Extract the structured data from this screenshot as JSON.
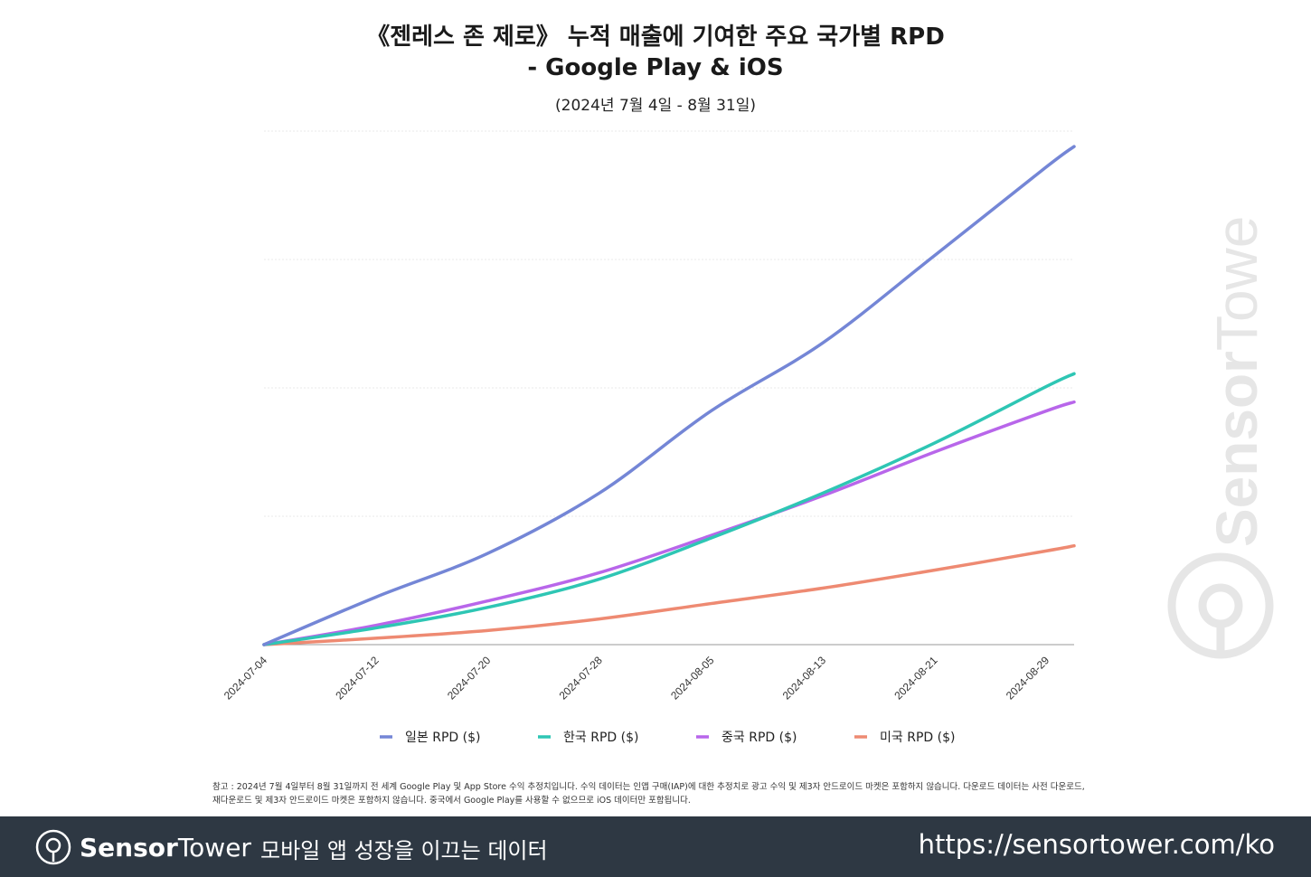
{
  "header": {
    "title_line1": "《젠레스 존 제로》 누적 매출에 기여한 주요 국가별 RPD",
    "title_line2": "- Google Play & iOS",
    "subtitle": "(2024년 7월 4일 - 8월 31일)"
  },
  "chart_data": {
    "type": "line",
    "title": "《젠레스 존 제로》 누적 매출에 기여한 주요 국가별 RPD - Google Play & iOS",
    "subtitle": "(2024년 7월 4일 - 8월 31일)",
    "xlabel": "",
    "ylabel": "",
    "x_ticks": [
      "2024-07-04",
      "2024-07-12",
      "2024-07-20",
      "2024-07-28",
      "2024-08-05",
      "2024-08-13",
      "2024-08-21",
      "2024-08-29"
    ],
    "x": [
      "2024-07-04",
      "2024-07-12",
      "2024-07-20",
      "2024-07-28",
      "2024-08-05",
      "2024-08-13",
      "2024-08-21",
      "2024-08-29",
      "2024-08-31"
    ],
    "xlim": [
      "2024-07-04",
      "2024-08-31"
    ],
    "ylim": [
      0,
      4
    ],
    "y_unit_note_hidden": true,
    "grid": true,
    "y_tick_labels_shown": false,
    "legend_placement": "bottom",
    "series": [
      {
        "name": "일본 RPD ($)",
        "color": "#7486d6",
        "values": [
          0,
          0.37,
          0.71,
          1.18,
          1.82,
          2.35,
          3.03,
          3.72,
          3.88
        ]
      },
      {
        "name": "한국 RPD ($)",
        "color": "#2ec6b4",
        "values": [
          0,
          0.13,
          0.29,
          0.51,
          0.83,
          1.18,
          1.57,
          2.01,
          2.11
        ]
      },
      {
        "name": "중국 RPD ($)",
        "color": "#b866ea",
        "values": [
          0,
          0.15,
          0.34,
          0.56,
          0.85,
          1.16,
          1.5,
          1.82,
          1.89
        ]
      },
      {
        "name": "미국 RPD ($)",
        "color": "#ee8a72",
        "values": [
          0,
          0.05,
          0.11,
          0.2,
          0.32,
          0.44,
          0.58,
          0.73,
          0.77
        ]
      }
    ]
  },
  "notes": {
    "line1": "참고 : 2024년 7월 4일부터 8월 31일까지 전 세계 Google Play 및 App Store 수익 추정치입니다. 수익 데이터는 인앱 구매(IAP)에 대한 추정치로 광고 수익 및 제3자 안드로이드 마켓은 포함하지 않습니다. 다운로드 데이터는 사전 다운로드,",
    "line2": "재다운로드 및 제3자 안드로이드 마켓은 포함하지 않습니다. 중국에서 Google Play를 사용할 수 없으므로 iOS 데이터만 포함됩니다."
  },
  "watermark": "SensorTower",
  "footer": {
    "brand_bold": "Sensor",
    "brand_light": "Tower",
    "tagline": "모바일 앱 성장을 이끄는 데이터",
    "url": "https://sensortower.com/ko",
    "background": "#2e3843"
  }
}
